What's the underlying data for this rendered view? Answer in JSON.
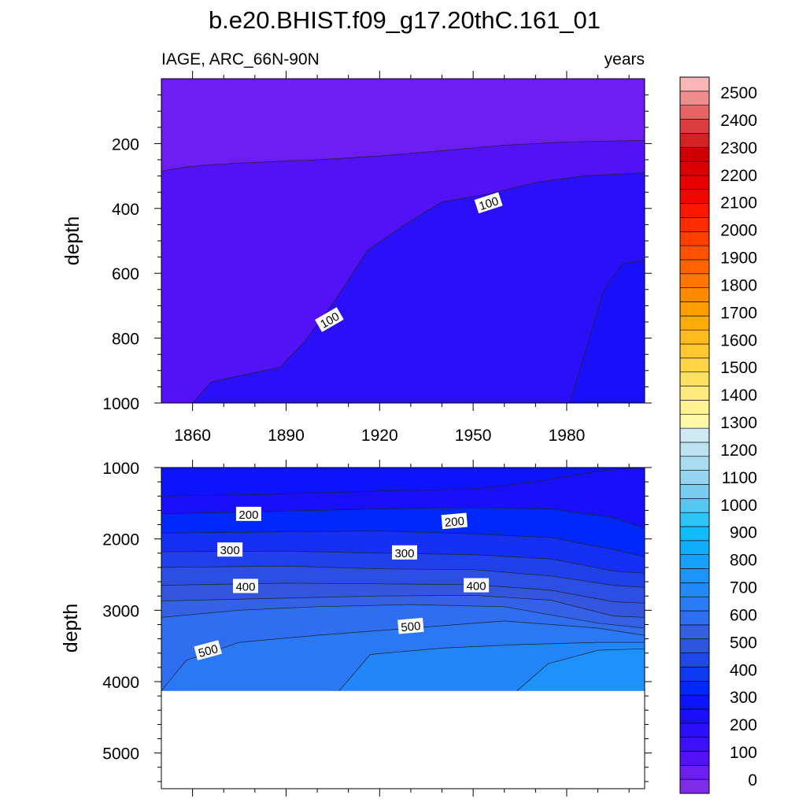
{
  "title": "b.e20.BHIST.f09_g17.20thC.161_01",
  "subtitle_left": "IAGE, ARC_66N-90N",
  "subtitle_right": "years",
  "chart_data": [
    {
      "type": "filled-contour",
      "panel": "upper",
      "ylabel": "depth",
      "y_inverted": true,
      "x_ticks": [
        "1860",
        "1890",
        "1920",
        "1950",
        "1980"
      ],
      "x_tick_values": [
        1860,
        1890,
        1920,
        1950,
        1980
      ],
      "y_ticks": [
        "200",
        "400",
        "600",
        "800",
        "1000"
      ],
      "y_tick_values": [
        200,
        400,
        600,
        800,
        1000
      ],
      "xlim": [
        1850,
        2005
      ],
      "ylim": [
        0,
        1000
      ],
      "contour_labels": [
        {
          "text": "100",
          "x": 1955,
          "y": 385,
          "angle": -18
        },
        {
          "text": "100",
          "x": 1904,
          "y": 745,
          "angle": -30
        }
      ],
      "contours": [
        {
          "level": 50,
          "x": [
            1850,
            1858,
            1866,
            1880,
            1900,
            1920,
            1940,
            1960,
            1980,
            2005
          ],
          "y": [
            285,
            272,
            265,
            258,
            250,
            238,
            222,
            205,
            195,
            190
          ]
        },
        {
          "level": 100,
          "x": [
            1860,
            1866,
            1878,
            1888,
            1896,
            1906,
            1916,
            1928,
            1940,
            1955,
            1970,
            1985,
            2005
          ],
          "y": [
            1000,
            935,
            910,
            890,
            810,
            680,
            530,
            450,
            380,
            355,
            320,
            300,
            290
          ]
        },
        {
          "level": 150,
          "x": [
            1981,
            1986,
            1992,
            1998,
            2005
          ],
          "y": [
            1000,
            840,
            650,
            570,
            560
          ]
        }
      ]
    },
    {
      "type": "filled-contour",
      "panel": "lower",
      "ylabel": "depth",
      "y_inverted": true,
      "x_ticks": [],
      "y_ticks": [
        "1000",
        "2000",
        "3000",
        "4000",
        "5000"
      ],
      "y_tick_values": [
        1000,
        2000,
        3000,
        4000,
        5000
      ],
      "xlim": [
        1850,
        2005
      ],
      "ylim": [
        1000,
        5500
      ],
      "data_bottom": 4130,
      "contour_labels": [
        {
          "text": "200",
          "x": 1878,
          "y": 1660,
          "angle": 0
        },
        {
          "text": "200",
          "x": 1944,
          "y": 1760,
          "angle": -5
        },
        {
          "text": "300",
          "x": 1872,
          "y": 2160,
          "angle": 0
        },
        {
          "text": "300",
          "x": 1928,
          "y": 2200,
          "angle": 0
        },
        {
          "text": "400",
          "x": 1877,
          "y": 2670,
          "angle": 0
        },
        {
          "text": "400",
          "x": 1951,
          "y": 2660,
          "angle": 0
        },
        {
          "text": "500",
          "x": 1930,
          "y": 3230,
          "angle": -5
        },
        {
          "text": "500",
          "x": 1865,
          "y": 3570,
          "angle": -15
        }
      ],
      "contours": [
        {
          "level": 150,
          "x": [
            1850,
            1880,
            1920,
            1950,
            1970,
            1990,
            2005
          ],
          "y": [
            1400,
            1380,
            1330,
            1300,
            1200,
            1050,
            1000
          ]
        },
        {
          "level": 200,
          "x": [
            1850,
            1890,
            1920,
            1950,
            1975,
            1995,
            2005
          ],
          "y": [
            1650,
            1610,
            1580,
            1560,
            1580,
            1700,
            1850
          ]
        },
        {
          "level": 250,
          "x": [
            1850,
            1890,
            1920,
            1950,
            1975,
            1995,
            2005
          ],
          "y": [
            1920,
            1900,
            1890,
            1930,
            1980,
            2150,
            2250
          ]
        },
        {
          "level": 300,
          "x": [
            1850,
            1890,
            1920,
            1950,
            1975,
            1995,
            2005
          ],
          "y": [
            2180,
            2170,
            2200,
            2220,
            2280,
            2450,
            2480
          ]
        },
        {
          "level": 350,
          "x": [
            1850,
            1890,
            1920,
            1950,
            1975,
            1995,
            2005
          ],
          "y": [
            2400,
            2380,
            2420,
            2430,
            2520,
            2650,
            2680
          ]
        },
        {
          "level": 400,
          "x": [
            1850,
            1890,
            1920,
            1950,
            1975,
            1995,
            2005
          ],
          "y": [
            2650,
            2620,
            2630,
            2640,
            2720,
            2880,
            2900
          ]
        },
        {
          "level": 450,
          "x": [
            1850,
            1890,
            1920,
            1950,
            1975,
            1995,
            2005
          ],
          "y": [
            2870,
            2830,
            2800,
            2790,
            2860,
            3080,
            3100
          ]
        },
        {
          "level": 500,
          "x": [
            1850,
            1875,
            1900,
            1930,
            1960,
            1990,
            2005
          ],
          "y": [
            3100,
            3000,
            2950,
            2920,
            2950,
            3180,
            3250
          ]
        },
        {
          "level": 550,
          "x": [
            1850,
            1858,
            1875,
            1900,
            1930,
            1960,
            1990,
            2005
          ],
          "y": [
            4130,
            3700,
            3450,
            3350,
            3250,
            3150,
            3250,
            3350
          ]
        },
        {
          "level": 600,
          "x": [
            1907,
            1917,
            1940,
            1965,
            1990,
            2005
          ],
          "y": [
            4130,
            3620,
            3530,
            3480,
            3450,
            3450
          ]
        },
        {
          "level": 650,
          "x": [
            1964,
            1974,
            1990,
            2005
          ],
          "y": [
            4130,
            3750,
            3560,
            3540
          ]
        }
      ]
    }
  ],
  "colorbar": {
    "labels": [
      "0",
      "100",
      "200",
      "300",
      "400",
      "500",
      "600",
      "700",
      "800",
      "900",
      "1000",
      "1100",
      "1200",
      "1300",
      "1400",
      "1500",
      "1600",
      "1700",
      "1800",
      "1900",
      "2000",
      "2100",
      "2200",
      "2300",
      "2400",
      "2500"
    ],
    "colors": [
      "#7f2ce8",
      "#6c1df0",
      "#5311f6",
      "#3d11f8",
      "#2a0ff9",
      "#1a0ffb",
      "#0c14fb",
      "#0028f8",
      "#0d3cf0",
      "#1f48e8",
      "#2c55e0",
      "#335fe0",
      "#2f6ef0",
      "#2a7cf6",
      "#2389f8",
      "#1c95fa",
      "#14a0fb",
      "#0eaefb",
      "#10bbf8",
      "#30c3f6",
      "#55c8f2",
      "#78cdf1",
      "#95d5f0",
      "#a8ddf1",
      "#bde3f2",
      "#d0eaf4",
      "#fff9a8",
      "#fff392",
      "#ffeb7c",
      "#ffe060",
      "#ffd545",
      "#ffc830",
      "#ffbb1c",
      "#ffac0a",
      "#ff9c00",
      "#ff8a00",
      "#ff7700",
      "#ff6400",
      "#ff5200",
      "#ff3f00",
      "#ff2c00",
      "#fb1800",
      "#f00800",
      "#e60000",
      "#d80000",
      "#cc0000",
      "#d22222",
      "#dc3e3e",
      "#e66464",
      "#f08e8e",
      "#f8b6b6"
    ]
  }
}
